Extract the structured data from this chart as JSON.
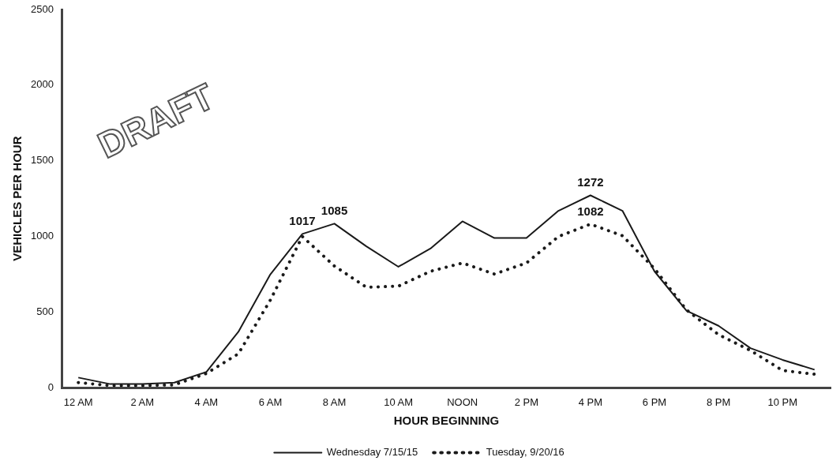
{
  "chart_data": {
    "type": "line",
    "xlabel": "HOUR BEGINNING",
    "ylabel": "VEHICLES PER HOUR",
    "categories": [
      "12 AM",
      null,
      "2 AM",
      null,
      "4 AM",
      null,
      "6 AM",
      null,
      "8 AM",
      null,
      "10 AM",
      null,
      "NOON",
      null,
      "2 PM",
      null,
      "4 PM",
      null,
      "6 PM",
      null,
      "8 PM",
      null,
      "10 PM",
      null
    ],
    "series": [
      {
        "name": "Wednesday 7/15/15",
        "color": "#1a1a1a",
        "line_style": "solid",
        "values": [
          68,
          25,
          25,
          35,
          105,
          370,
          750,
          1017,
          1085,
          935,
          800,
          920,
          1100,
          990,
          990,
          1170,
          1272,
          1170,
          770,
          510,
          410,
          262,
          185,
          120
        ],
        "value_labels": [
          null,
          null,
          null,
          null,
          null,
          null,
          null,
          "1017",
          "1085",
          null,
          null,
          null,
          null,
          null,
          null,
          null,
          "1272",
          null,
          null,
          null,
          null,
          null,
          null,
          null
        ]
      },
      {
        "name": "Tuesday, 9/20/16",
        "color": "#1a1a1a",
        "line_style": "dotted",
        "values": [
          35,
          15,
          15,
          20,
          95,
          225,
          580,
          1000,
          805,
          665,
          672,
          770,
          825,
          752,
          825,
          1000,
          1082,
          1005,
          788,
          515,
          352,
          247,
          115,
          90
        ],
        "value_labels": [
          null,
          null,
          null,
          null,
          null,
          null,
          null,
          null,
          null,
          null,
          null,
          null,
          null,
          null,
          null,
          null,
          "1082",
          null,
          null,
          null,
          null,
          null,
          null,
          null
        ]
      }
    ],
    "ylim": [
      0,
      2500
    ],
    "yticks": [
      0,
      500,
      1000,
      1500,
      2000,
      2500
    ],
    "grid": false,
    "legend": "bottom",
    "marker": "none",
    "annotations": [
      "DRAFT"
    ]
  }
}
